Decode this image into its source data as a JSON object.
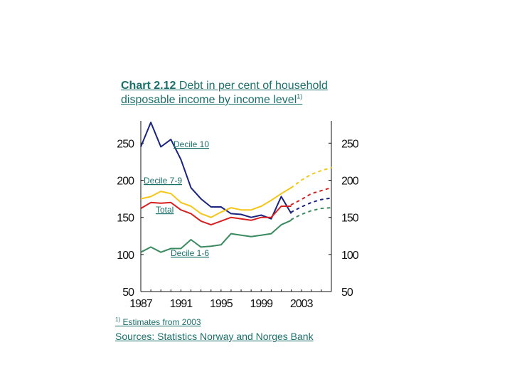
{
  "title": {
    "prefix": "Chart 2.12",
    "rest": " Debt in per cent of household",
    "line2": "disposable income by income level",
    "footnote_mark": "1)"
  },
  "footnote": {
    "mark": "1)",
    "text": " Estimates from 2003"
  },
  "sources": "Sources: Statistics Norway and Norges Bank",
  "chart_data": {
    "type": "line",
    "xlim": [
      1987,
      2006
    ],
    "ylim": [
      50,
      280
    ],
    "y_ticks": [
      50,
      100,
      150,
      200,
      250
    ],
    "x_ticks": [
      1987,
      1991,
      1995,
      1999,
      2003
    ],
    "estimates_from": 2003,
    "series": [
      {
        "name": "Decile 10",
        "color": "#1a237e",
        "x": [
          1987,
          1988,
          1989,
          1990,
          1991,
          1992,
          1993,
          1994,
          1995,
          1996,
          1997,
          1998,
          1999,
          2000,
          2001,
          2002
        ],
        "values": [
          245,
          278,
          245,
          255,
          228,
          190,
          175,
          164,
          164,
          155,
          154,
          150,
          153,
          148,
          178,
          155
        ],
        "estimates": {
          "x": [
            2002,
            2003,
            2004,
            2005,
            2006
          ],
          "values": [
            157,
            164,
            170,
            174,
            176
          ]
        }
      },
      {
        "name": "Decile 7-9",
        "color": "#f5c518",
        "x": [
          1987,
          1988,
          1989,
          1990,
          1991,
          1992,
          1993,
          1994,
          1995,
          1996,
          1997,
          1998,
          1999,
          2000,
          2001,
          2002
        ],
        "values": [
          175,
          178,
          185,
          182,
          170,
          165,
          155,
          150,
          157,
          163,
          160,
          160,
          165,
          173,
          182,
          190
        ],
        "estimates": {
          "x": [
            2002,
            2003,
            2004,
            2005,
            2006
          ],
          "values": [
            190,
            200,
            208,
            213,
            217
          ]
        }
      },
      {
        "name": "Total",
        "color": "#d62020",
        "x": [
          1987,
          1988,
          1989,
          1990,
          1991,
          1992,
          1993,
          1994,
          1995,
          1996,
          1997,
          1998,
          1999,
          2000,
          2001,
          2002
        ],
        "values": [
          162,
          170,
          169,
          170,
          160,
          155,
          145,
          140,
          145,
          150,
          148,
          146,
          150,
          150,
          165,
          165
        ],
        "estimates": {
          "x": [
            2002,
            2003,
            2004,
            2005,
            2006
          ],
          "values": [
            167,
            174,
            182,
            186,
            190
          ]
        }
      },
      {
        "name": "Decile 1-6",
        "color": "#3a8a5f",
        "x": [
          1987,
          1988,
          1989,
          1990,
          1991,
          1992,
          1993,
          1994,
          1995,
          1996,
          1997,
          1998,
          1999,
          2000,
          2001,
          2002
        ],
        "values": [
          103,
          110,
          103,
          108,
          108,
          120,
          110,
          111,
          113,
          128,
          126,
          124,
          126,
          128,
          140,
          146
        ],
        "estimates": {
          "x": [
            2002,
            2003,
            2004,
            2005,
            2006
          ],
          "values": [
            147,
            154,
            159,
            162,
            163
          ]
        }
      }
    ]
  }
}
